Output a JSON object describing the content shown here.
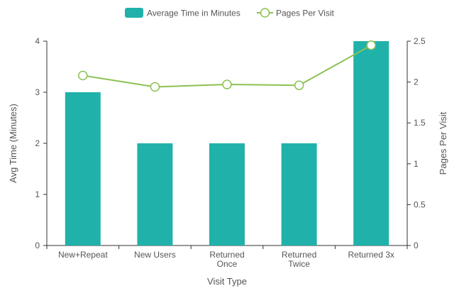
{
  "chart_data": {
    "type": "bar",
    "categories": [
      "New+Repeat",
      "New Users",
      "Returned Once",
      "Returned Twice",
      "Returned 3x"
    ],
    "category_lines": [
      [
        "New+Repeat"
      ],
      [
        "New Users"
      ],
      [
        "Returned",
        "Once"
      ],
      [
        "Returned",
        "Twice"
      ],
      [
        "Returned 3x"
      ]
    ],
    "series": [
      {
        "name": "Average Time in Minutes",
        "type": "bar",
        "axis": "left",
        "color": "#20b2aa",
        "values": [
          3,
          2,
          2,
          2,
          4
        ]
      },
      {
        "name": "Pages Per Visit",
        "type": "line",
        "axis": "right",
        "color": "#8cc152",
        "values": [
          2.08,
          1.94,
          1.97,
          1.96,
          2.45
        ]
      }
    ],
    "xlabel": "Visit Type",
    "ylabel": "Avg Time (Minutes)",
    "y2label": "Pages Per Visit",
    "ylim": [
      0,
      4
    ],
    "y2lim": [
      0,
      2.5
    ],
    "yticks": [
      "0",
      "1",
      "2",
      "3",
      "4"
    ],
    "y2ticks": [
      "0",
      "0.5",
      "1",
      "1.5",
      "2",
      "2.5"
    ],
    "legend_position": "top-center",
    "grid": false
  }
}
